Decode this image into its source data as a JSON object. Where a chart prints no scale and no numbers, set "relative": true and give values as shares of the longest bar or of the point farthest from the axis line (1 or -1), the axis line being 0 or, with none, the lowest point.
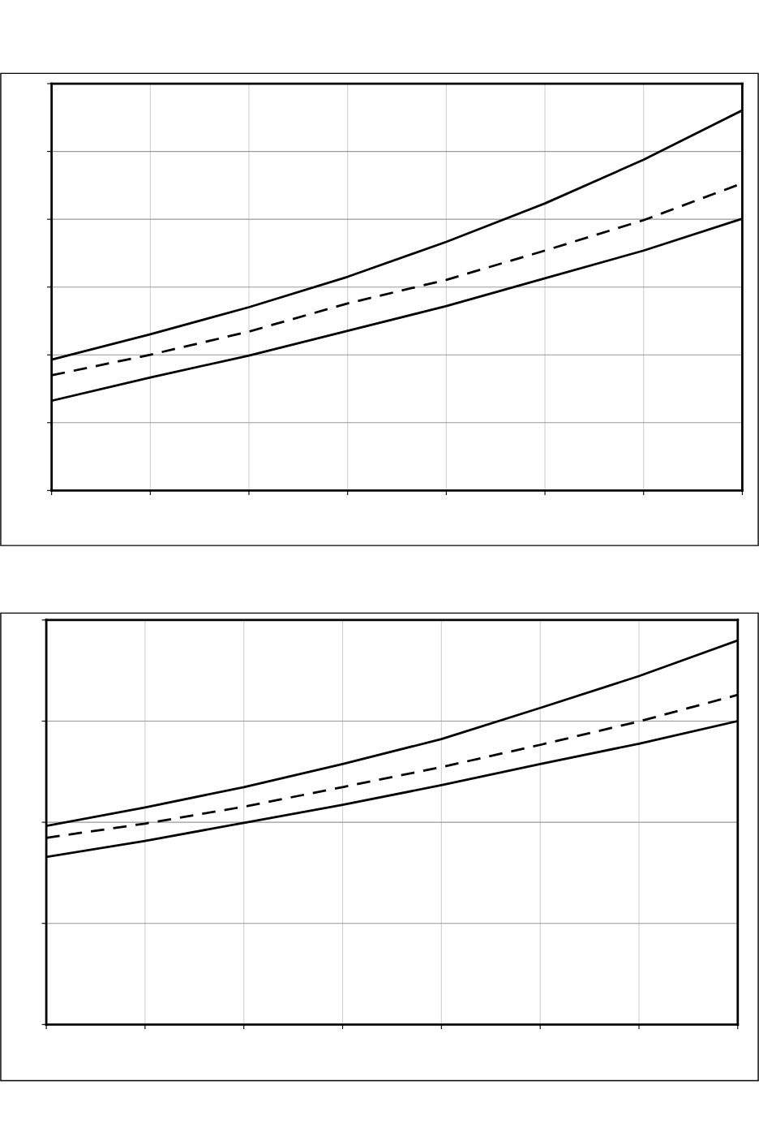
{
  "chart_data": [
    {
      "type": "line",
      "relative": true,
      "grid": true,
      "marker": "none",
      "categories": [
        null,
        null,
        null,
        null,
        null,
        null,
        null,
        null
      ],
      "series": [
        {
          "color": "#000000",
          "line_style": "solid",
          "values": [
            0.344,
            0.411,
            0.482,
            0.562,
            0.654,
            0.755,
            0.87,
            1
          ]
        },
        {
          "color": "#000000",
          "line_style": "dashed",
          "values": [
            0.303,
            0.357,
            0.418,
            0.492,
            0.554,
            0.631,
            0.711,
            0.808
          ]
        },
        {
          "color": "#000000",
          "line_style": "solid",
          "values": [
            0.236,
            0.297,
            0.355,
            0.42,
            0.485,
            0.558,
            0.631,
            0.715
          ]
        }
      ]
    },
    {
      "type": "line",
      "relative": true,
      "grid": true,
      "marker": "none",
      "categories": [
        null,
        null,
        null,
        null,
        null,
        null,
        null,
        null
      ],
      "series": [
        {
          "color": "#000000",
          "line_style": "solid",
          "values": [
            0.517,
            0.565,
            0.618,
            0.678,
            0.743,
            0.824,
            0.907,
            1
          ]
        },
        {
          "color": "#000000",
          "line_style": "dashed",
          "values": [
            0.486,
            0.523,
            0.567,
            0.618,
            0.67,
            0.728,
            0.789,
            0.858
          ]
        },
        {
          "color": "#000000",
          "line_style": "solid",
          "values": [
            0.436,
            0.478,
            0.525,
            0.572,
            0.623,
            0.678,
            0.731,
            0.79
          ]
        }
      ]
    }
  ]
}
